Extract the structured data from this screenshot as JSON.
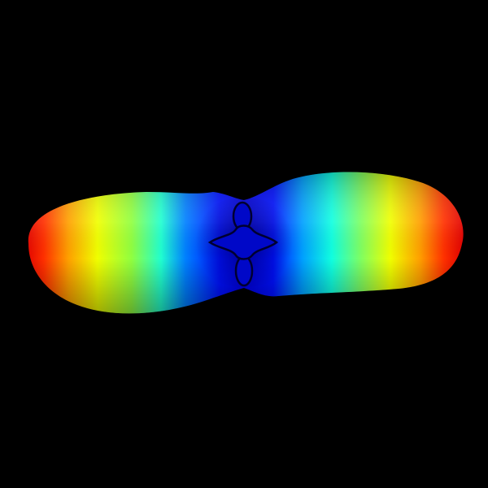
{
  "scene": {
    "background_color": "#000000",
    "object": "lobed-surface-render",
    "colormap": "jet",
    "colormap_stops": [
      "#00008f",
      "#0000ff",
      "#00ffff",
      "#ffff00",
      "#ff0000",
      "#800000"
    ]
  }
}
